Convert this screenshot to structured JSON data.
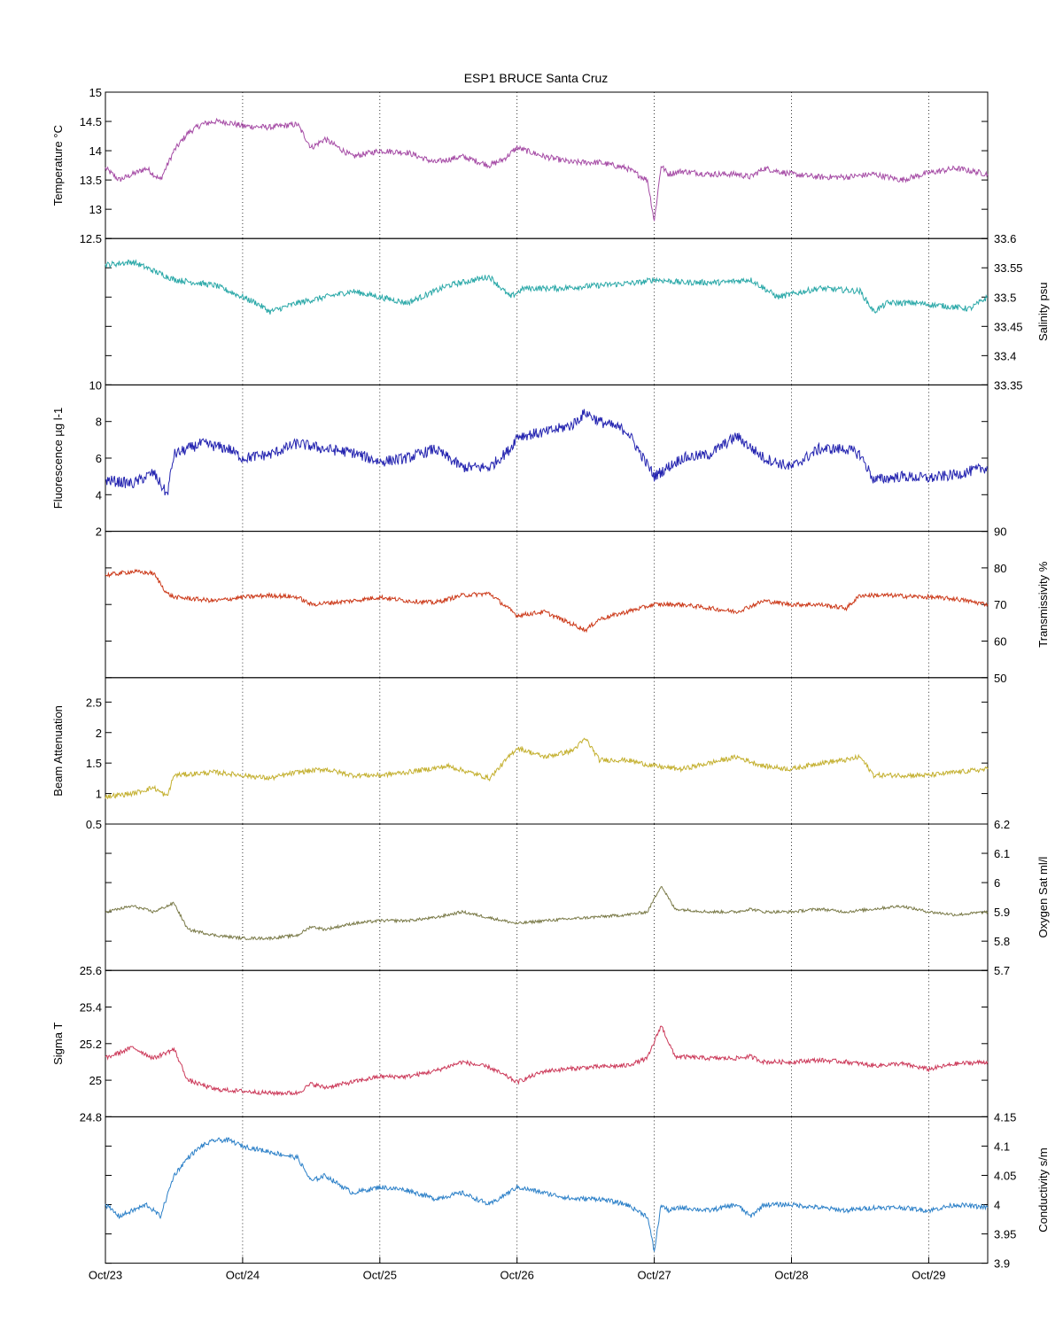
{
  "chart_data": {
    "type": "line",
    "title": "ESP1 BRUCE Santa Cruz",
    "x_ticks": [
      "Oct/23",
      "Oct/24",
      "Oct/25",
      "Oct/26",
      "Oct/27",
      "Oct/28",
      "Oct/29"
    ],
    "x_range_days": [
      0,
      6.43
    ],
    "panels": [
      {
        "name": "temperature",
        "ylabel": "Temperature °C",
        "axis_side": "left",
        "ylim": [
          12.5,
          15
        ],
        "ticks": [
          12.5,
          13,
          13.5,
          14,
          14.5,
          15
        ],
        "tick_labels": [
          "12.5",
          "13",
          "13.5",
          "14",
          "14.5",
          "15"
        ],
        "color": "#a64da6",
        "noise": 0.05,
        "x": [
          0,
          0.1,
          0.2,
          0.3,
          0.4,
          0.5,
          0.6,
          0.7,
          0.8,
          0.9,
          1.0,
          1.2,
          1.4,
          1.5,
          1.6,
          1.8,
          2.0,
          2.2,
          2.4,
          2.6,
          2.8,
          2.9,
          3.0,
          3.2,
          3.4,
          3.6,
          3.8,
          3.95,
          4.0,
          4.05,
          4.1,
          4.2,
          4.4,
          4.6,
          4.7,
          4.8,
          5.0,
          5.2,
          5.4,
          5.6,
          5.8,
          6.0,
          6.2,
          6.43
        ],
        "y": [
          13.7,
          13.5,
          13.6,
          13.7,
          13.5,
          14.0,
          14.3,
          14.45,
          14.5,
          14.48,
          14.42,
          14.4,
          14.45,
          14.05,
          14.2,
          13.9,
          14.0,
          13.97,
          13.8,
          13.9,
          13.75,
          13.85,
          14.05,
          13.9,
          13.8,
          13.8,
          13.7,
          13.5,
          12.8,
          13.75,
          13.6,
          13.65,
          13.6,
          13.6,
          13.55,
          13.7,
          13.6,
          13.55,
          13.55,
          13.6,
          13.5,
          13.62,
          13.7,
          13.6
        ]
      },
      {
        "name": "salinity",
        "ylabel": "Salinity psu",
        "axis_side": "right",
        "ylim": [
          33.35,
          33.6
        ],
        "ticks": [
          33.35,
          33.4,
          33.45,
          33.5,
          33.55,
          33.6
        ],
        "tick_labels": [
          "33.35",
          "33.4",
          "33.45",
          "33.5",
          "33.55",
          "33.6"
        ],
        "color": "#2aa8a8",
        "noise": 0.005,
        "x": [
          0,
          0.2,
          0.35,
          0.5,
          0.8,
          1.0,
          1.1,
          1.2,
          1.4,
          1.6,
          1.8,
          2.0,
          2.2,
          2.5,
          2.8,
          2.95,
          3.05,
          3.3,
          3.6,
          3.9,
          4.0,
          4.2,
          4.5,
          4.7,
          4.9,
          5.2,
          5.5,
          5.6,
          5.7,
          5.9,
          6.1,
          6.3,
          6.43
        ],
        "y": [
          33.555,
          33.56,
          33.545,
          33.53,
          33.52,
          33.5,
          33.49,
          33.475,
          33.49,
          33.5,
          33.51,
          33.5,
          33.49,
          33.52,
          33.535,
          33.5,
          33.515,
          33.515,
          33.52,
          33.525,
          33.53,
          33.525,
          33.525,
          33.53,
          33.5,
          33.515,
          33.51,
          33.475,
          33.49,
          33.49,
          33.485,
          33.48,
          33.5
        ]
      },
      {
        "name": "fluorescence",
        "ylabel": "Fluorescence µg l-1",
        "axis_side": "left",
        "ylim": [
          2,
          10
        ],
        "ticks": [
          2,
          4,
          6,
          8,
          10
        ],
        "tick_labels": [
          "2",
          "4",
          "6",
          "8",
          "10"
        ],
        "color": "#2424b0",
        "noise": 0.3,
        "x": [
          0,
          0.2,
          0.35,
          0.45,
          0.5,
          0.7,
          0.9,
          1.0,
          1.2,
          1.4,
          1.6,
          1.8,
          2.0,
          2.2,
          2.4,
          2.6,
          2.8,
          2.95,
          3.0,
          3.2,
          3.4,
          3.5,
          3.6,
          3.8,
          4.0,
          4.2,
          4.4,
          4.6,
          4.8,
          5.0,
          5.2,
          5.4,
          5.5,
          5.6,
          5.8,
          6.0,
          6.2,
          6.43
        ],
        "y": [
          4.8,
          4.6,
          5.2,
          4.0,
          6.2,
          6.8,
          6.5,
          6.0,
          6.2,
          6.8,
          6.5,
          6.3,
          5.8,
          6.0,
          6.5,
          5.5,
          5.5,
          6.5,
          7.2,
          7.4,
          7.8,
          8.5,
          8.0,
          7.5,
          5.0,
          6.0,
          6.2,
          7.2,
          6.0,
          5.5,
          6.5,
          6.5,
          6.2,
          4.8,
          5.0,
          4.9,
          5.1,
          5.5
        ]
      },
      {
        "name": "transmissivity",
        "ylabel": "Transmissivity %",
        "axis_side": "right",
        "ylim": [
          50,
          90
        ],
        "ticks": [
          50,
          60,
          70,
          80,
          90
        ],
        "tick_labels": [
          "50",
          "60",
          "70",
          "80",
          "90"
        ],
        "color": "#cc3a1a",
        "noise": 0.6,
        "x": [
          0,
          0.2,
          0.35,
          0.45,
          0.5,
          0.8,
          1.0,
          1.2,
          1.4,
          1.5,
          1.8,
          2.0,
          2.2,
          2.4,
          2.6,
          2.8,
          3.0,
          3.2,
          3.5,
          3.6,
          3.8,
          4.0,
          4.2,
          4.4,
          4.6,
          4.8,
          5.0,
          5.2,
          5.4,
          5.5,
          5.7,
          6.0,
          6.2,
          6.43
        ],
        "y": [
          78,
          79,
          78.5,
          73,
          72,
          71,
          72,
          72.5,
          72,
          70,
          71,
          72,
          71,
          70.5,
          72.5,
          73,
          67,
          68,
          63,
          66,
          68,
          70,
          70,
          69,
          68,
          71,
          70,
          70,
          69,
          72.5,
          72.5,
          72,
          71.5,
          70
        ]
      },
      {
        "name": "beam_attenuation",
        "ylabel": "Beam Attenuation",
        "axis_side": "left",
        "ylim": [
          0.5,
          2.9
        ],
        "ticks": [
          0.5,
          1,
          1.5,
          2,
          2.5
        ],
        "tick_labels": [
          "0.5",
          "1",
          "1.5",
          "2",
          "2.5"
        ],
        "color": "#c4b030",
        "noise": 0.04,
        "x": [
          0,
          0.2,
          0.35,
          0.45,
          0.5,
          0.8,
          1.0,
          1.2,
          1.4,
          1.6,
          1.8,
          2.0,
          2.2,
          2.5,
          2.8,
          3.0,
          3.2,
          3.4,
          3.5,
          3.6,
          3.8,
          4.0,
          4.2,
          4.4,
          4.6,
          4.8,
          5.0,
          5.2,
          5.4,
          5.5,
          5.6,
          5.8,
          6.0,
          6.2,
          6.43
        ],
        "y": [
          0.95,
          1.0,
          1.1,
          0.95,
          1.3,
          1.35,
          1.3,
          1.25,
          1.35,
          1.4,
          1.3,
          1.3,
          1.35,
          1.45,
          1.25,
          1.75,
          1.6,
          1.7,
          1.9,
          1.55,
          1.55,
          1.45,
          1.4,
          1.5,
          1.6,
          1.45,
          1.4,
          1.5,
          1.55,
          1.6,
          1.3,
          1.3,
          1.3,
          1.35,
          1.4
        ]
      },
      {
        "name": "oxygen_sat",
        "ylabel": "Oxygen Sat ml/l",
        "axis_side": "right",
        "ylim": [
          5.7,
          6.2
        ],
        "ticks": [
          5.7,
          5.8,
          5.9,
          6.0,
          6.1,
          6.2
        ],
        "tick_labels": [
          "5.7",
          "5.8",
          "5.9",
          "6",
          "6.1",
          "6.2"
        ],
        "color": "#7a7a48",
        "noise": 0.005,
        "x": [
          0,
          0.2,
          0.35,
          0.5,
          0.6,
          0.8,
          1.0,
          1.2,
          1.4,
          1.5,
          1.6,
          1.8,
          2.0,
          2.2,
          2.4,
          2.6,
          2.8,
          3.0,
          3.2,
          3.5,
          3.8,
          3.95,
          4.05,
          4.15,
          4.4,
          4.6,
          4.7,
          4.8,
          5.0,
          5.2,
          5.4,
          5.6,
          5.8,
          6.0,
          6.2,
          6.43
        ],
        "y": [
          5.9,
          5.92,
          5.9,
          5.93,
          5.84,
          5.82,
          5.81,
          5.81,
          5.82,
          5.85,
          5.84,
          5.86,
          5.87,
          5.87,
          5.88,
          5.9,
          5.88,
          5.86,
          5.87,
          5.88,
          5.89,
          5.9,
          5.99,
          5.91,
          5.9,
          5.9,
          5.91,
          5.9,
          5.9,
          5.91,
          5.9,
          5.91,
          5.92,
          5.9,
          5.89,
          5.9
        ]
      },
      {
        "name": "sigma_t",
        "ylabel": "Sigma T",
        "axis_side": "left",
        "ylim": [
          24.8,
          25.6
        ],
        "ticks": [
          24.8,
          25.0,
          25.2,
          25.4,
          25.6
        ],
        "tick_labels": [
          "24.8",
          "25",
          "25.2",
          "25.4",
          "25.6"
        ],
        "color": "#cc3a5a",
        "noise": 0.012,
        "x": [
          0,
          0.2,
          0.35,
          0.5,
          0.6,
          0.8,
          1.0,
          1.2,
          1.4,
          1.5,
          1.6,
          1.8,
          2.0,
          2.2,
          2.4,
          2.6,
          2.8,
          3.0,
          3.2,
          3.5,
          3.8,
          3.95,
          4.05,
          4.15,
          4.4,
          4.6,
          4.7,
          4.8,
          5.0,
          5.2,
          5.4,
          5.6,
          5.8,
          6.0,
          6.2,
          6.43
        ],
        "y": [
          25.12,
          25.18,
          25.12,
          25.17,
          25.0,
          24.95,
          24.94,
          24.93,
          24.93,
          24.98,
          24.96,
          24.99,
          25.02,
          25.02,
          25.05,
          25.1,
          25.07,
          24.99,
          25.05,
          25.07,
          25.08,
          25.12,
          25.3,
          25.13,
          25.12,
          25.12,
          25.13,
          25.1,
          25.1,
          25.11,
          25.1,
          25.08,
          25.09,
          25.06,
          25.09,
          25.1
        ]
      },
      {
        "name": "conductivity",
        "ylabel": "Conductivity s/m",
        "axis_side": "right",
        "ylim": [
          3.9,
          4.15
        ],
        "ticks": [
          3.9,
          3.95,
          4.0,
          4.05,
          4.1,
          4.15
        ],
        "tick_labels": [
          "3.9",
          "3.95",
          "4",
          "4.05",
          "4.1",
          "4.15"
        ],
        "color": "#2c80c8",
        "noise": 0.004,
        "x": [
          0,
          0.1,
          0.2,
          0.3,
          0.4,
          0.5,
          0.6,
          0.7,
          0.8,
          0.9,
          1.0,
          1.2,
          1.4,
          1.5,
          1.6,
          1.8,
          2.0,
          2.2,
          2.4,
          2.6,
          2.8,
          3.0,
          3.2,
          3.4,
          3.6,
          3.8,
          3.95,
          4.0,
          4.05,
          4.1,
          4.2,
          4.4,
          4.6,
          4.7,
          4.8,
          5.0,
          5.2,
          5.4,
          5.6,
          5.8,
          6.0,
          6.2,
          6.43
        ],
        "y": [
          4.0,
          3.98,
          3.99,
          4.0,
          3.98,
          4.05,
          4.08,
          4.1,
          4.11,
          4.11,
          4.1,
          4.09,
          4.08,
          4.04,
          4.05,
          4.02,
          4.03,
          4.025,
          4.01,
          4.02,
          4.0,
          4.03,
          4.02,
          4.01,
          4.01,
          4.0,
          3.98,
          3.92,
          4.0,
          3.99,
          3.995,
          3.99,
          4.0,
          3.98,
          4.0,
          4.0,
          3.995,
          3.99,
          3.995,
          3.995,
          3.99,
          4.0,
          3.995
        ]
      }
    ]
  }
}
